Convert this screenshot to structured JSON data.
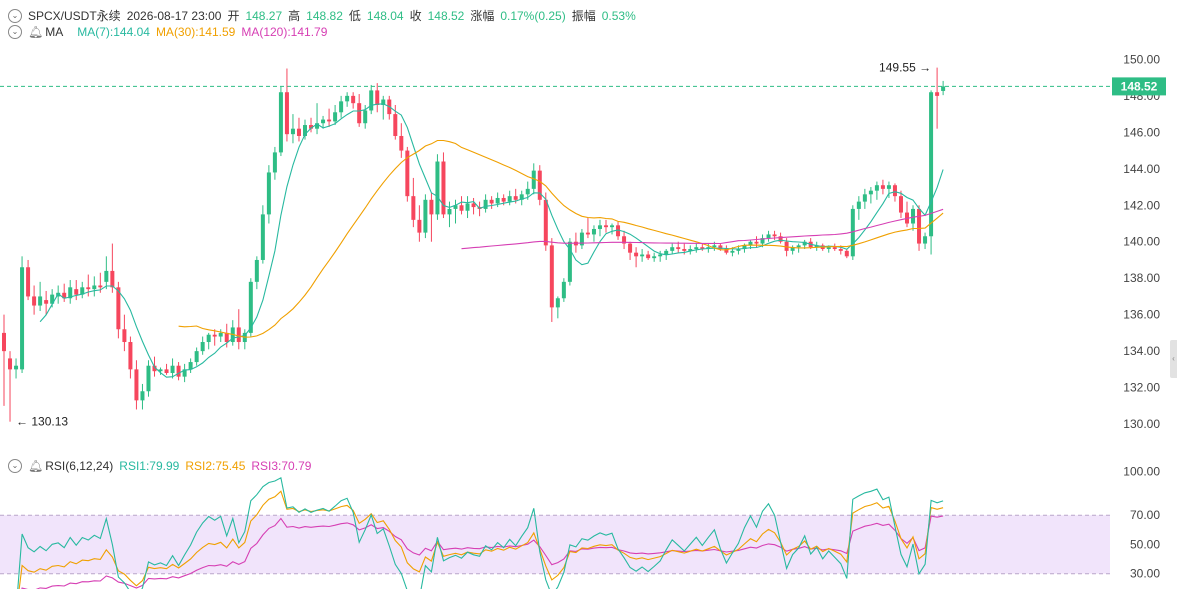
{
  "header": {
    "symbol": "SPCX/USDT永续",
    "datetime": "2026-08-17 23:00",
    "open_label": "开",
    "open": "148.27",
    "high_label": "高",
    "high": "148.82",
    "low_label": "低",
    "low": "148.04",
    "close_label": "收",
    "close": "148.52",
    "change_label": "涨幅",
    "change": "0.17%(0.25)",
    "amp_label": "振幅",
    "amp": "0.53%"
  },
  "ma_legend": {
    "label": "MA",
    "ma7": "MA(7):144.04",
    "ma30": "MA(30):141.59",
    "ma120": "MA(120):141.79"
  },
  "rsi_legend": {
    "label": "RSI(6,12,24)",
    "rsi1": "RSI1:79.99",
    "rsi2": "RSI2:75.45",
    "rsi3": "RSI3:70.79"
  },
  "annotations": {
    "high_marker": "149.55",
    "low_marker": "130.13",
    "price_tag": "148.52"
  },
  "colors": {
    "up": "#2ebd85",
    "down": "#f6465d",
    "ma7": "#28b9a0",
    "ma30": "#f0a000",
    "ma120": "#d63fb4",
    "rsi1": "#28b9a0",
    "rsi2": "#f0a000",
    "rsi3": "#d63fb4",
    "rsi_band": "#f1e4fb"
  },
  "chart_data": [
    {
      "type": "candlestick",
      "ylim": [
        129.4,
        150.9
      ],
      "ticks": [
        "150.00",
        "148.00",
        "146.00",
        "144.00",
        "142.00",
        "140.00",
        "138.00",
        "136.00",
        "134.00",
        "132.00",
        "130.00"
      ],
      "tick_values": [
        150,
        148,
        146,
        144,
        142,
        140,
        138,
        136,
        134,
        132,
        130
      ],
      "grid": false,
      "candles": [
        [
          135.0,
          136.0,
          131.0,
          134.0
        ],
        [
          133.6,
          134.0,
          130.13,
          133.0
        ],
        [
          133.0,
          133.6,
          132.5,
          133.2
        ],
        [
          133.0,
          139.2,
          132.8,
          138.6
        ],
        [
          138.6,
          139.0,
          136.8,
          137.0
        ],
        [
          137.0,
          137.6,
          136.0,
          136.5
        ],
        [
          136.5,
          137.8,
          136.2,
          137.0
        ],
        [
          136.8,
          137.3,
          136.0,
          136.6
        ],
        [
          136.6,
          137.4,
          136.4,
          137.1
        ],
        [
          137.0,
          137.6,
          136.6,
          137.2
        ],
        [
          137.2,
          137.7,
          136.7,
          136.9
        ],
        [
          136.9,
          137.9,
          136.6,
          137.5
        ],
        [
          137.4,
          137.9,
          136.8,
          137.1
        ],
        [
          137.1,
          137.8,
          136.9,
          137.5
        ],
        [
          137.5,
          138.2,
          137.0,
          137.4
        ],
        [
          137.4,
          138.1,
          137.0,
          137.6
        ],
        [
          137.6,
          138.3,
          137.2,
          137.5
        ],
        [
          137.8,
          139.2,
          137.4,
          138.4
        ],
        [
          138.4,
          139.9,
          137.2,
          137.5
        ],
        [
          137.5,
          137.8,
          134.7,
          135.2
        ],
        [
          135.2,
          136.0,
          134.0,
          134.5
        ],
        [
          134.5,
          134.8,
          132.5,
          133.0
        ],
        [
          133.0,
          133.5,
          130.8,
          131.3
        ],
        [
          131.3,
          132.2,
          130.8,
          131.8
        ],
        [
          131.8,
          133.5,
          131.5,
          133.2
        ],
        [
          133.2,
          133.7,
          132.6,
          132.9
        ],
        [
          132.9,
          133.1,
          132.7,
          133.0
        ],
        [
          133.0,
          133.3,
          132.7,
          132.8
        ],
        [
          132.8,
          133.6,
          132.5,
          133.2
        ],
        [
          133.2,
          133.4,
          132.4,
          132.6
        ],
        [
          132.6,
          133.3,
          132.3,
          133.0
        ],
        [
          133.0,
          133.6,
          132.8,
          133.4
        ],
        [
          133.4,
          134.2,
          133.2,
          134.0
        ],
        [
          134.0,
          134.8,
          133.8,
          134.5
        ],
        [
          134.5,
          135.0,
          134.1,
          134.9
        ],
        [
          134.9,
          135.2,
          134.3,
          134.8
        ],
        [
          134.8,
          135.2,
          134.5,
          135.0
        ],
        [
          135.0,
          135.5,
          134.2,
          134.5
        ],
        [
          134.5,
          135.7,
          134.3,
          135.3
        ],
        [
          135.3,
          136.3,
          134.1,
          134.5
        ],
        [
          134.5,
          135.2,
          134.1,
          135.0
        ],
        [
          135.0,
          138.0,
          134.8,
          137.8
        ],
        [
          137.8,
          139.2,
          137.4,
          139.0
        ],
        [
          139.0,
          142.0,
          138.8,
          141.5
        ],
        [
          141.5,
          144.2,
          141.0,
          143.8
        ],
        [
          143.8,
          145.2,
          143.4,
          144.9
        ],
        [
          144.9,
          148.5,
          144.7,
          148.2
        ],
        [
          148.2,
          149.5,
          145.5,
          145.9
        ],
        [
          145.9,
          147.0,
          145.4,
          146.2
        ],
        [
          146.2,
          146.8,
          145.5,
          145.8
        ],
        [
          145.8,
          146.7,
          145.6,
          146.4
        ],
        [
          146.4,
          146.8,
          146.0,
          146.2
        ],
        [
          146.2,
          147.6,
          145.9,
          146.5
        ],
        [
          146.5,
          146.9,
          146.2,
          146.7
        ],
        [
          146.7,
          147.3,
          146.3,
          146.6
        ],
        [
          146.6,
          147.5,
          146.4,
          147.1
        ],
        [
          147.1,
          148.0,
          146.8,
          147.7
        ],
        [
          147.7,
          148.2,
          147.4,
          148.0
        ],
        [
          148.0,
          148.2,
          147.3,
          147.6
        ],
        [
          147.6,
          148.1,
          146.3,
          146.5
        ],
        [
          146.5,
          147.5,
          146.2,
          147.2
        ],
        [
          147.2,
          148.6,
          147.0,
          148.3
        ],
        [
          148.3,
          148.7,
          147.1,
          147.5
        ],
        [
          147.5,
          148.0,
          146.7,
          147.8
        ],
        [
          147.8,
          148.0,
          146.7,
          147.0
        ],
        [
          147.0,
          147.5,
          145.6,
          145.8
        ],
        [
          145.8,
          146.5,
          144.6,
          145.0
        ],
        [
          145.0,
          145.2,
          142.2,
          142.5
        ],
        [
          142.5,
          143.5,
          140.8,
          141.2
        ],
        [
          141.2,
          142.0,
          140.0,
          140.5
        ],
        [
          140.5,
          142.6,
          140.2,
          142.3
        ],
        [
          142.3,
          142.7,
          140.0,
          141.5
        ],
        [
          141.5,
          144.8,
          141.2,
          144.4
        ],
        [
          144.4,
          144.9,
          141.3,
          141.5
        ],
        [
          141.5,
          142.2,
          140.8,
          141.8
        ],
        [
          141.8,
          142.3,
          141.0,
          142.0
        ],
        [
          142.0,
          142.5,
          141.5,
          141.7
        ],
        [
          141.7,
          142.5,
          141.3,
          142.1
        ],
        [
          142.1,
          142.4,
          141.5,
          141.9
        ],
        [
          141.9,
          142.2,
          141.4,
          141.8
        ],
        [
          141.8,
          142.6,
          141.6,
          142.3
        ],
        [
          142.3,
          142.5,
          141.8,
          142.1
        ],
        [
          142.1,
          142.7,
          141.9,
          142.4
        ],
        [
          142.4,
          142.6,
          142.0,
          142.2
        ],
        [
          142.2,
          142.8,
          142.0,
          142.5
        ],
        [
          142.5,
          142.9,
          142.1,
          142.3
        ],
        [
          142.3,
          142.8,
          142.0,
          142.6
        ],
        [
          142.6,
          143.3,
          142.3,
          142.9
        ],
        [
          142.9,
          144.3,
          142.6,
          143.9
        ],
        [
          143.9,
          144.2,
          142.0,
          142.3
        ],
        [
          142.3,
          142.7,
          139.5,
          139.8
        ],
        [
          139.8,
          140.2,
          135.6,
          136.4
        ],
        [
          136.4,
          137.0,
          135.8,
          136.9
        ],
        [
          136.9,
          138.0,
          136.7,
          137.8
        ],
        [
          137.8,
          140.2,
          137.6,
          140.0
        ],
        [
          140.0,
          140.5,
          139.4,
          139.8
        ],
        [
          139.8,
          140.7,
          139.6,
          140.5
        ],
        [
          140.5,
          141.3,
          140.2,
          140.4
        ],
        [
          140.4,
          140.9,
          140.0,
          140.7
        ],
        [
          140.7,
          141.2,
          140.3,
          140.9
        ],
        [
          140.9,
          141.2,
          140.5,
          140.8
        ],
        [
          140.8,
          141.0,
          140.4,
          140.9
        ],
        [
          140.9,
          141.1,
          140.1,
          140.3
        ],
        [
          140.3,
          140.6,
          139.6,
          139.9
        ],
        [
          139.9,
          140.0,
          139.0,
          139.4
        ],
        [
          139.4,
          139.7,
          138.6,
          139.2
        ],
        [
          139.2,
          139.6,
          138.9,
          139.3
        ],
        [
          139.3,
          139.5,
          139.0,
          139.1
        ],
        [
          139.1,
          139.4,
          138.9,
          139.2
        ],
        [
          139.2,
          139.5,
          138.9,
          139.3
        ],
        [
          139.3,
          139.6,
          139.0,
          139.5
        ],
        [
          139.5,
          139.9,
          139.3,
          139.7
        ],
        [
          139.7,
          140.0,
          139.4,
          139.6
        ],
        [
          139.6,
          139.9,
          139.3,
          139.5
        ],
        [
          139.5,
          139.8,
          139.3,
          139.6
        ],
        [
          139.6,
          139.9,
          139.4,
          139.7
        ],
        [
          139.7,
          139.9,
          139.5,
          139.6
        ],
        [
          139.6,
          139.9,
          139.4,
          139.7
        ],
        [
          139.7,
          140.0,
          139.5,
          139.8
        ],
        [
          139.8,
          139.9,
          139.5,
          139.6
        ],
        [
          139.6,
          139.8,
          139.3,
          139.4
        ],
        [
          139.4,
          139.7,
          139.2,
          139.5
        ],
        [
          139.5,
          139.8,
          139.3,
          139.6
        ],
        [
          139.6,
          139.9,
          139.4,
          139.8
        ],
        [
          139.8,
          140.1,
          139.6,
          140.0
        ],
        [
          140.0,
          140.3,
          139.7,
          139.9
        ],
        [
          139.9,
          140.4,
          139.7,
          140.2
        ],
        [
          140.2,
          140.6,
          140.0,
          140.4
        ],
        [
          140.4,
          140.6,
          140.1,
          140.3
        ],
        [
          140.3,
          140.5,
          139.9,
          140.0
        ],
        [
          140.0,
          140.2,
          139.2,
          139.5
        ],
        [
          139.5,
          139.8,
          139.3,
          139.7
        ],
        [
          139.7,
          139.9,
          139.4,
          139.8
        ],
        [
          139.8,
          140.1,
          139.6,
          140.0
        ],
        [
          140.0,
          140.2,
          139.6,
          139.7
        ],
        [
          139.7,
          140.0,
          139.5,
          139.8
        ],
        [
          139.8,
          139.9,
          139.5,
          139.6
        ],
        [
          139.6,
          139.8,
          139.4,
          139.7
        ],
        [
          139.7,
          139.9,
          139.5,
          139.6
        ],
        [
          139.6,
          139.8,
          139.3,
          139.5
        ],
        [
          139.5,
          139.6,
          139.1,
          139.2
        ],
        [
          139.2,
          142.0,
          139.0,
          141.8
        ],
        [
          141.8,
          142.5,
          141.2,
          142.2
        ],
        [
          142.2,
          142.9,
          141.8,
          142.6
        ],
        [
          142.6,
          143.0,
          142.1,
          142.8
        ],
        [
          142.8,
          143.3,
          142.3,
          143.1
        ],
        [
          143.1,
          143.4,
          142.6,
          142.9
        ],
        [
          142.9,
          143.3,
          142.4,
          143.1
        ],
        [
          143.1,
          143.2,
          142.2,
          142.5
        ],
        [
          142.5,
          142.8,
          141.3,
          141.6
        ],
        [
          141.6,
          142.2,
          140.8,
          141.0
        ],
        [
          141.0,
          142.0,
          140.6,
          141.8
        ],
        [
          141.8,
          142.0,
          139.5,
          139.9
        ],
        [
          139.9,
          140.5,
          139.6,
          140.3
        ],
        [
          140.3,
          148.3,
          139.3,
          148.2
        ],
        [
          148.2,
          149.55,
          146.2,
          148.0
        ],
        [
          148.27,
          148.82,
          148.04,
          148.52
        ]
      ]
    },
    {
      "type": "line",
      "title": "RSI(6,12,24)",
      "ylim": [
        25,
        103
      ],
      "ticks": [
        "100.00",
        "70.00",
        "50.00",
        "30.00"
      ],
      "tick_values": [
        100,
        70,
        50,
        30
      ],
      "band": [
        30,
        70
      ]
    }
  ]
}
